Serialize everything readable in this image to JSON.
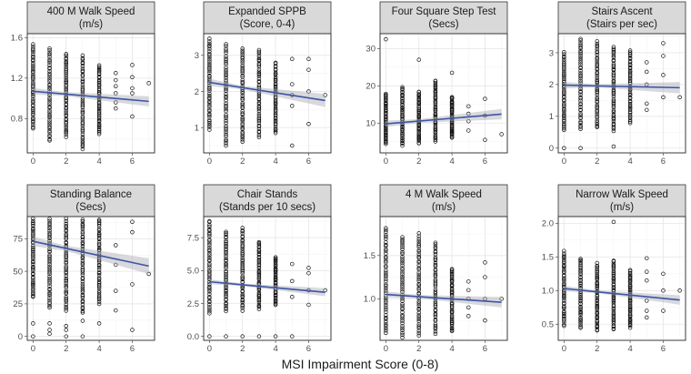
{
  "figure": {
    "xlabel": "MSI Impairment Score (0-8)",
    "x_ticks": [
      0,
      2,
      4,
      6
    ],
    "xlim": [
      -0.35,
      7.35
    ]
  },
  "colors": {
    "fit_line": "#3b55a0",
    "band": "#a9a9b5",
    "strip": "#d9d9d9",
    "points": "#111111"
  },
  "chart_data": [
    {
      "type": "scatter",
      "title": "400 M Walk Speed",
      "subtitle": "(m/s)",
      "ylim": [
        0.46,
        1.64
      ],
      "y_ticks": [
        0.8,
        1.2,
        1.6
      ],
      "y_tick_labels": [
        "0.8",
        "1.2",
        "1.6"
      ],
      "columns": [
        {
          "x": 0,
          "min": 0.7,
          "max": 1.53
        },
        {
          "x": 1,
          "min": 0.58,
          "max": 1.49
        },
        {
          "x": 2,
          "min": 0.62,
          "max": 1.44
        },
        {
          "x": 3,
          "min": 0.5,
          "max": 1.42
        },
        {
          "x": 4,
          "min": 0.65,
          "max": 1.32
        }
      ],
      "extra_points": [
        [
          5,
          0.96
        ],
        [
          5,
          1.05
        ],
        [
          5,
          1.12
        ],
        [
          5,
          1.25
        ],
        [
          5,
          0.9
        ],
        [
          5,
          1.18
        ],
        [
          6,
          0.82
        ],
        [
          6,
          1.1
        ],
        [
          6,
          1.21
        ],
        [
          6,
          1.33
        ],
        [
          6,
          1.05
        ],
        [
          7,
          1.15
        ]
      ],
      "fit": {
        "x": [
          0,
          7
        ],
        "y": [
          1.07,
          0.97
        ],
        "band_halfwidth": [
          0.02,
          0.05
        ]
      }
    },
    {
      "type": "scatter",
      "title": "Expanded SPPB",
      "subtitle": "(Score, 0-4)",
      "ylim": [
        0.3,
        3.6
      ],
      "y_ticks": [
        1,
        2,
        3
      ],
      "y_tick_labels": [
        "1",
        "2",
        "3"
      ],
      "columns": [
        {
          "x": 0,
          "min": 0.95,
          "max": 3.45
        },
        {
          "x": 1,
          "min": 0.5,
          "max": 3.3
        },
        {
          "x": 2,
          "min": 0.6,
          "max": 3.2
        },
        {
          "x": 3,
          "min": 0.75,
          "max": 3.15
        },
        {
          "x": 4,
          "min": 0.85,
          "max": 2.8
        }
      ],
      "extra_points": [
        [
          5,
          0.5
        ],
        [
          5,
          1.6
        ],
        [
          5,
          2.2
        ],
        [
          5,
          2.9
        ],
        [
          5,
          1.9
        ],
        [
          6,
          1.1
        ],
        [
          6,
          2.0
        ],
        [
          6,
          2.9
        ],
        [
          6,
          2.6
        ],
        [
          7,
          1.9
        ]
      ],
      "fit": {
        "x": [
          0,
          7
        ],
        "y": [
          2.25,
          1.75
        ],
        "band_halfwidth": [
          0.05,
          0.18
        ]
      }
    },
    {
      "type": "scatter",
      "title": "Four Square Step Test",
      "subtitle": "(Secs)",
      "ylim": [
        2.0,
        34.0
      ],
      "y_ticks": [
        10,
        20,
        30
      ],
      "y_tick_labels": [
        "10",
        "20",
        "30"
      ],
      "columns": [
        {
          "x": 0,
          "min": 4.5,
          "max": 18.0
        },
        {
          "x": 1,
          "min": 4.0,
          "max": 19.5
        },
        {
          "x": 2,
          "min": 4.5,
          "max": 18.5
        },
        {
          "x": 3,
          "min": 5.0,
          "max": 21.5
        },
        {
          "x": 4,
          "min": 6.0,
          "max": 17.0
        }
      ],
      "extra_points": [
        [
          0,
          32.5
        ],
        [
          2,
          27.0
        ],
        [
          4,
          23.5
        ],
        [
          5,
          8.0
        ],
        [
          5,
          10.5
        ],
        [
          5,
          12.5
        ],
        [
          5,
          14.5
        ],
        [
          6,
          5.5
        ],
        [
          6,
          12.0
        ],
        [
          6,
          16.5
        ],
        [
          7,
          7.0
        ]
      ],
      "fit": {
        "x": [
          0,
          7
        ],
        "y": [
          9.8,
          12.4
        ],
        "band_halfwidth": [
          0.5,
          1.4
        ]
      }
    },
    {
      "type": "scatter",
      "title": "Stairs Ascent",
      "subtitle": "(Stairs per sec)",
      "ylim": [
        -0.15,
        3.6
      ],
      "y_ticks": [
        0,
        1,
        2,
        3
      ],
      "y_tick_labels": [
        "0",
        "1",
        "2",
        "3"
      ],
      "columns": [
        {
          "x": 0,
          "min": 0.55,
          "max": 3.0
        },
        {
          "x": 1,
          "min": 0.6,
          "max": 3.45
        },
        {
          "x": 2,
          "min": 0.65,
          "max": 3.35
        },
        {
          "x": 3,
          "min": 0.55,
          "max": 3.2
        },
        {
          "x": 4,
          "min": 0.8,
          "max": 3.05
        }
      ],
      "extra_points": [
        [
          0,
          0.0
        ],
        [
          1,
          0.0
        ],
        [
          3,
          0.05
        ],
        [
          5,
          1.2
        ],
        [
          5,
          1.4
        ],
        [
          5,
          2.0
        ],
        [
          5,
          2.4
        ],
        [
          5,
          2.7
        ],
        [
          6,
          1.6
        ],
        [
          6,
          2.3
        ],
        [
          6,
          2.9
        ],
        [
          6,
          3.3
        ],
        [
          7,
          1.6
        ]
      ],
      "fit": {
        "x": [
          0,
          7
        ],
        "y": [
          1.98,
          1.9
        ],
        "band_halfwidth": [
          0.05,
          0.18
        ]
      }
    },
    {
      "type": "scatter",
      "title": "Standing Balance",
      "subtitle": "(Secs)",
      "ylim": [
        -3,
        92
      ],
      "y_ticks": [
        0,
        25,
        50,
        75
      ],
      "y_tick_labels": [
        "0",
        "25",
        "50",
        "75"
      ],
      "columns": [
        {
          "x": 0,
          "min": 30,
          "max": 90
        },
        {
          "x": 1,
          "min": 22,
          "max": 90
        },
        {
          "x": 2,
          "min": 20,
          "max": 90
        },
        {
          "x": 3,
          "min": 18,
          "max": 90
        },
        {
          "x": 4,
          "min": 25,
          "max": 90
        }
      ],
      "extra_points": [
        [
          0,
          0
        ],
        [
          0,
          10
        ],
        [
          1,
          2
        ],
        [
          1,
          5
        ],
        [
          1,
          10
        ],
        [
          2,
          0
        ],
        [
          2,
          5
        ],
        [
          2,
          8
        ],
        [
          3,
          0
        ],
        [
          3,
          12
        ],
        [
          4,
          10
        ],
        [
          5,
          20
        ],
        [
          5,
          35
        ],
        [
          5,
          55
        ],
        [
          5,
          70
        ],
        [
          6,
          5
        ],
        [
          6,
          40
        ],
        [
          6,
          80
        ],
        [
          6,
          88
        ],
        [
          7,
          48
        ]
      ],
      "fit": {
        "x": [
          0,
          7
        ],
        "y": [
          73,
          54
        ],
        "band_halfwidth": [
          2,
          6
        ]
      }
    },
    {
      "type": "scatter",
      "title": "Chair Stands",
      "subtitle": "(Stands per 10 secs)",
      "ylim": [
        -0.3,
        9.1
      ],
      "y_ticks": [
        0.0,
        2.5,
        5.0,
        7.5
      ],
      "y_tick_labels": [
        "0.0",
        "2.5",
        "5.0",
        "7.5"
      ],
      "columns": [
        {
          "x": 0,
          "min": 1.8,
          "max": 8.8
        },
        {
          "x": 1,
          "min": 1.9,
          "max": 8.0
        },
        {
          "x": 2,
          "min": 2.0,
          "max": 8.2
        },
        {
          "x": 3,
          "min": 2.1,
          "max": 7.2
        },
        {
          "x": 4,
          "min": 2.4,
          "max": 6.0
        }
      ],
      "extra_points": [
        [
          0,
          0.0
        ],
        [
          1,
          0.0
        ],
        [
          2,
          0.0
        ],
        [
          3,
          0.0
        ],
        [
          4,
          0.0
        ],
        [
          5,
          0.0
        ],
        [
          5,
          3.0
        ],
        [
          5,
          4.2
        ],
        [
          5,
          5.5
        ],
        [
          6,
          2.4
        ],
        [
          6,
          3.5
        ],
        [
          6,
          4.8
        ],
        [
          6,
          5.2
        ],
        [
          7,
          3.5
        ]
      ],
      "fit": {
        "x": [
          0,
          7
        ],
        "y": [
          4.15,
          3.35
        ],
        "band_halfwidth": [
          0.1,
          0.3
        ]
      }
    },
    {
      "type": "scatter",
      "title": "4 M Walk Speed",
      "subtitle": "(m/s)",
      "ylim": [
        0.52,
        1.95
      ],
      "y_ticks": [
        1.0,
        1.5
      ],
      "y_tick_labels": [
        "1.0",
        "1.5"
      ],
      "columns": [
        {
          "x": 0,
          "min": 0.6,
          "max": 1.82
        },
        {
          "x": 1,
          "min": 0.56,
          "max": 1.72
        },
        {
          "x": 2,
          "min": 0.58,
          "max": 1.75
        },
        {
          "x": 3,
          "min": 0.6,
          "max": 1.65
        },
        {
          "x": 4,
          "min": 0.62,
          "max": 1.35
        }
      ],
      "extra_points": [
        [
          5,
          0.8
        ],
        [
          5,
          0.9
        ],
        [
          5,
          1.0
        ],
        [
          5,
          1.1
        ],
        [
          5,
          1.2
        ],
        [
          6,
          0.75
        ],
        [
          6,
          1.0
        ],
        [
          6,
          1.25
        ],
        [
          6,
          1.42
        ],
        [
          7,
          1.0
        ]
      ],
      "fit": {
        "x": [
          0,
          7
        ],
        "y": [
          1.05,
          0.96
        ],
        "band_halfwidth": [
          0.02,
          0.06
        ]
      }
    },
    {
      "type": "scatter",
      "title": "Narrow Walk Speed",
      "subtitle": "(m/s)",
      "ylim": [
        0.26,
        2.1
      ],
      "y_ticks": [
        0.5,
        1.0,
        1.5,
        2.0
      ],
      "y_tick_labels": [
        "0.5",
        "1.0",
        "1.5",
        "2.0"
      ],
      "columns": [
        {
          "x": 0,
          "min": 0.48,
          "max": 1.58
        },
        {
          "x": 1,
          "min": 0.45,
          "max": 1.48
        },
        {
          "x": 2,
          "min": 0.4,
          "max": 1.4
        },
        {
          "x": 3,
          "min": 0.42,
          "max": 1.45
        },
        {
          "x": 4,
          "min": 0.45,
          "max": 1.3
        }
      ],
      "extra_points": [
        [
          3,
          2.02
        ],
        [
          5,
          0.6
        ],
        [
          5,
          0.7
        ],
        [
          5,
          0.85
        ],
        [
          5,
          1.15
        ],
        [
          5,
          1.28
        ],
        [
          5,
          1.48
        ],
        [
          6,
          0.7
        ],
        [
          6,
          1.0
        ],
        [
          6,
          1.25
        ],
        [
          7,
          1.0
        ]
      ],
      "fit": {
        "x": [
          0,
          7
        ],
        "y": [
          1.03,
          0.86
        ],
        "band_halfwidth": [
          0.02,
          0.07
        ]
      }
    }
  ]
}
